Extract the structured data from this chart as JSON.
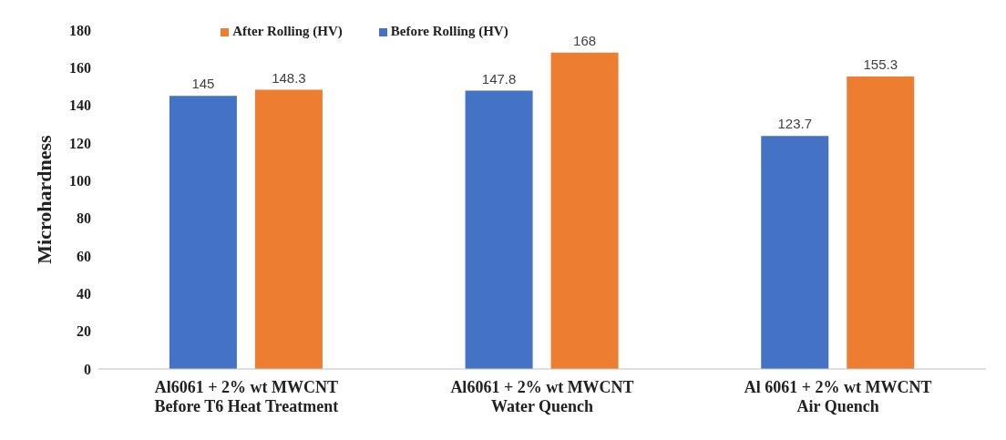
{
  "chart_data": {
    "type": "bar",
    "ylabel": "Microhardness",
    "categories": [
      "Al6061 + 2% wt MWCNT\nBefore T6 Heat Treatment",
      "Al6061 + 2% wt MWCNT\nWater Quench",
      "Al 6061 + 2% wt MWCNT\nAir Quench"
    ],
    "series": [
      {
        "name": "Before Rolling (HV)",
        "color": "#4472c4",
        "values": [
          145,
          147.8,
          123.7
        ]
      },
      {
        "name": "After Rolling (HV)",
        "color": "#ed7d31",
        "values": [
          148.3,
          168,
          155.3
        ]
      }
    ],
    "ylim": [
      0,
      180
    ],
    "yticks": [
      0,
      20,
      40,
      60,
      80,
      100,
      120,
      140,
      160,
      180
    ],
    "grid": false,
    "legend": "top",
    "data_labels": true
  }
}
